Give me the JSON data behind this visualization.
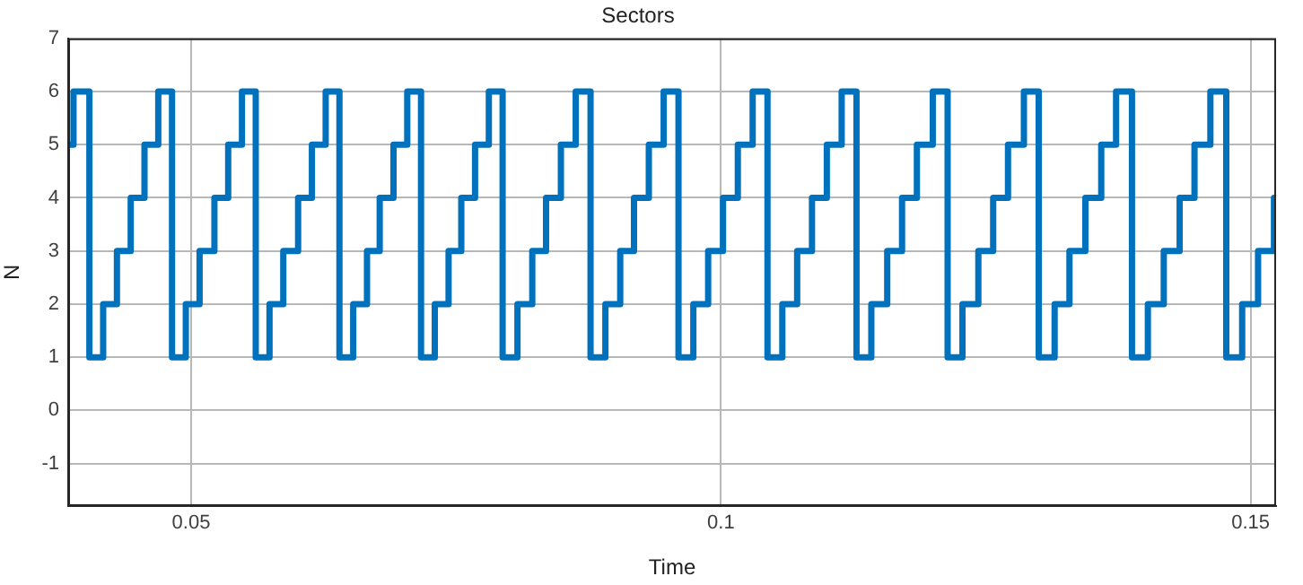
{
  "chart_data": {
    "type": "step",
    "title": "Sectors",
    "xlabel": "Time",
    "ylabel": "N",
    "xlim": [
      0.0384,
      0.1524
    ],
    "xticks": [
      0.05,
      0.1,
      0.15
    ],
    "ylim": [
      -1.8,
      7
    ],
    "yticks": [
      -1,
      0,
      1,
      2,
      3,
      4,
      5,
      6,
      7
    ],
    "grid": true,
    "legend": false,
    "marker": "none",
    "line_style": "solid",
    "series": [
      {
        "color": "#0072bd",
        "x": [
          0.0384,
          0.0389,
          0.0404,
          0.0417,
          0.043,
          0.0443,
          0.0456,
          0.0469,
          0.0482,
          0.0495,
          0.0508,
          0.0522,
          0.0535,
          0.0548,
          0.0561,
          0.0574,
          0.0587,
          0.0601,
          0.0614,
          0.0627,
          0.064,
          0.0653,
          0.0666,
          0.0678,
          0.0691,
          0.0704,
          0.0717,
          0.073,
          0.0743,
          0.0755,
          0.0768,
          0.0781,
          0.0794,
          0.0808,
          0.0822,
          0.0835,
          0.0849,
          0.0863,
          0.0877,
          0.0891,
          0.0905,
          0.0918,
          0.0932,
          0.0946,
          0.096,
          0.0974,
          0.0988,
          0.1002,
          0.1016,
          0.103,
          0.1044,
          0.1058,
          0.1072,
          0.1086,
          0.11,
          0.1114,
          0.1128,
          0.1142,
          0.1157,
          0.1171,
          0.1185,
          0.12,
          0.1214,
          0.1228,
          0.1243,
          0.1257,
          0.1271,
          0.1286,
          0.13,
          0.1315,
          0.1329,
          0.1344,
          0.1359,
          0.1373,
          0.1388,
          0.1403,
          0.1418,
          0.1433,
          0.1447,
          0.1462,
          0.1477,
          0.1492,
          0.1507,
          0.1522,
          0.1524
        ],
        "values": [
          5,
          6,
          1,
          2,
          3,
          4,
          5,
          6,
          1,
          2,
          3,
          4,
          5,
          6,
          1,
          2,
          3,
          4,
          5,
          6,
          1,
          2,
          3,
          4,
          5,
          6,
          1,
          2,
          3,
          4,
          5,
          6,
          1,
          2,
          3,
          4,
          5,
          6,
          1,
          2,
          3,
          4,
          5,
          6,
          1,
          2,
          3,
          4,
          5,
          6,
          1,
          2,
          3,
          4,
          5,
          6,
          1,
          2,
          3,
          4,
          5,
          6,
          1,
          2,
          3,
          4,
          5,
          6,
          1,
          2,
          3,
          4,
          5,
          6,
          1,
          2,
          3,
          4,
          5,
          6,
          1,
          2,
          3,
          4,
          4
        ]
      }
    ]
  }
}
